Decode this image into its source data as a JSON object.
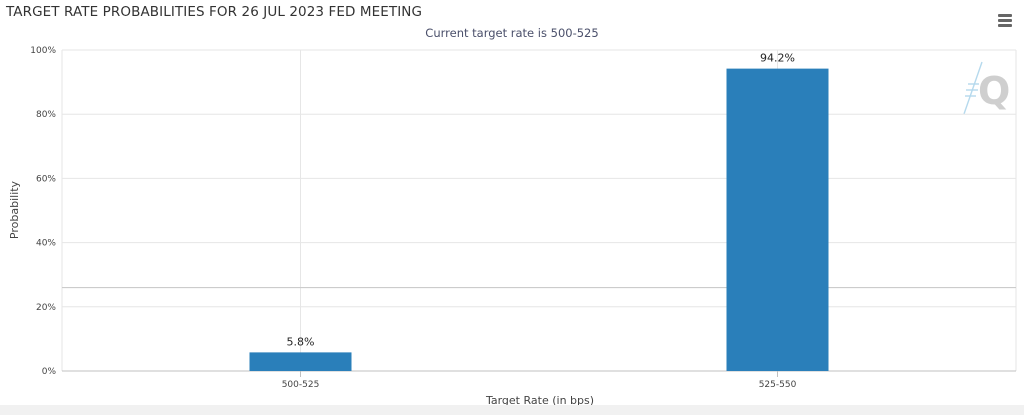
{
  "menu_icon": "hamburger-menu-icon",
  "watermark_icon": "q-logo-watermark-icon",
  "colors": {
    "bar": "#2a7fba",
    "grid": "#e6e6e6",
    "axis": "#c0c0c0",
    "reference_line": "#cccccc"
  },
  "chart_data": {
    "type": "bar",
    "title": "TARGET RATE PROBABILITIES FOR 26 JUL 2023 FED MEETING",
    "subtitle": "Current target rate is 500-525",
    "xlabel": "Target Rate (in bps)",
    "ylabel": "Probability",
    "categories": [
      "500-525",
      "525-550"
    ],
    "values": [
      5.8,
      94.2
    ],
    "data_labels": [
      "5.8%",
      "94.2%"
    ],
    "ylim": [
      0,
      100
    ],
    "yticks": [
      0,
      20,
      40,
      60,
      80,
      100
    ],
    "ytick_labels": [
      "0%",
      "20%",
      "40%",
      "60%",
      "80%",
      "100%"
    ],
    "reference_line_y": 26,
    "grid": true,
    "legend": "none"
  }
}
